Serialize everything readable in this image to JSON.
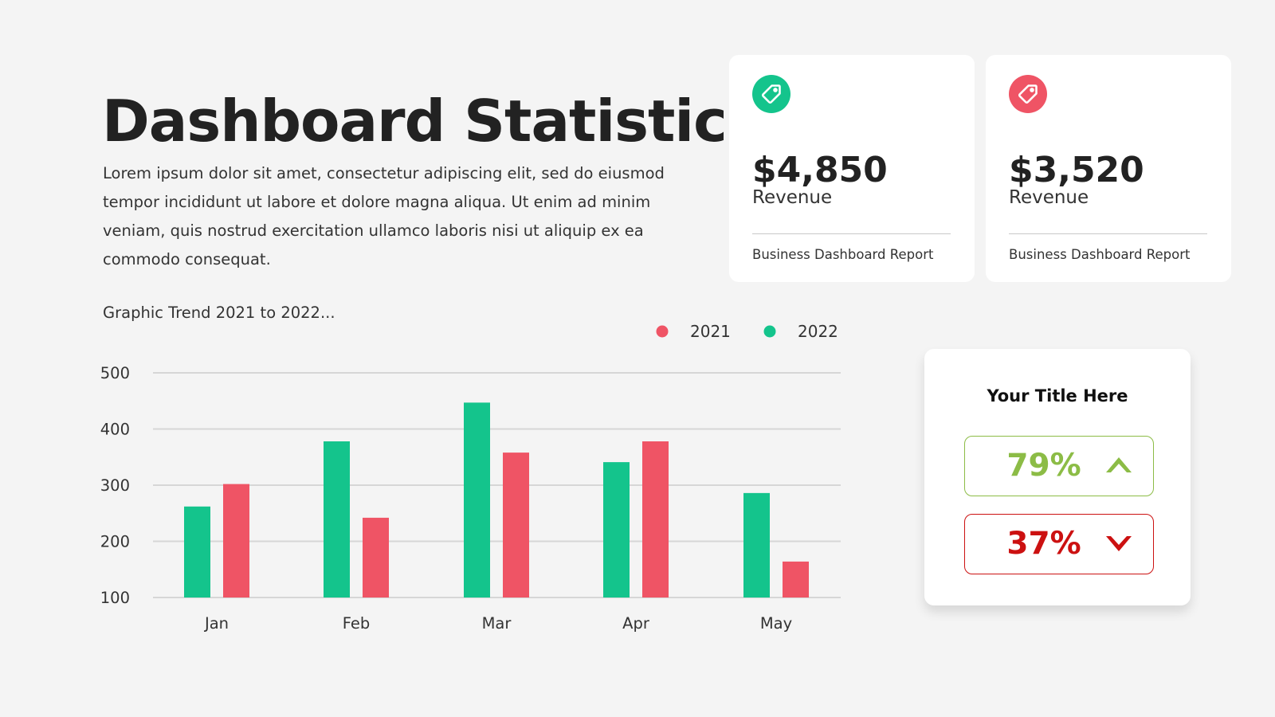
{
  "header": {
    "title": "Dashboard Statistic",
    "description": "Lorem ipsum dolor sit amet, consectetur adipiscing elit, sed do eiusmod tempor incididunt ut labore et dolore magna aliqua. Ut enim ad minim veniam, quis nostrud exercitation ullamco laboris nisi ut aliquip ex ea commodo consequat."
  },
  "cards": [
    {
      "icon": "tag-icon",
      "accent": "#14c48c",
      "value": "$4,850",
      "label": "Revenue",
      "footer": "Business Dashboard Report"
    },
    {
      "icon": "tag-icon",
      "accent": "#ef5465",
      "value": "$3,520",
      "label": "Revenue",
      "footer": "Business Dashboard Report"
    }
  ],
  "chart_subtitle": "Graphic Trend 2021 to 2022...",
  "chart_data": {
    "type": "bar",
    "categories": [
      "Jan",
      "Feb",
      "Mar",
      "Apr",
      "May"
    ],
    "series": [
      {
        "name": "2022",
        "color": "#14c48c",
        "values": [
          262,
          378,
          447,
          341,
          286
        ]
      },
      {
        "name": "2021",
        "color": "#ef5465",
        "values": [
          302,
          242,
          358,
          378,
          164
        ]
      }
    ],
    "legend_order": [
      "2021",
      "2022"
    ],
    "legend_position": "top-right",
    "yticks": [
      100,
      200,
      300,
      400,
      500
    ],
    "ylim": [
      100,
      500
    ],
    "grid": true
  },
  "stats": {
    "title": "Your Title Here",
    "up": {
      "value": "79%",
      "color": "#8cbc46",
      "icon": "chevron-up-icon"
    },
    "down": {
      "value": "37%",
      "color": "#cc1111",
      "icon": "chevron-down-icon"
    }
  }
}
